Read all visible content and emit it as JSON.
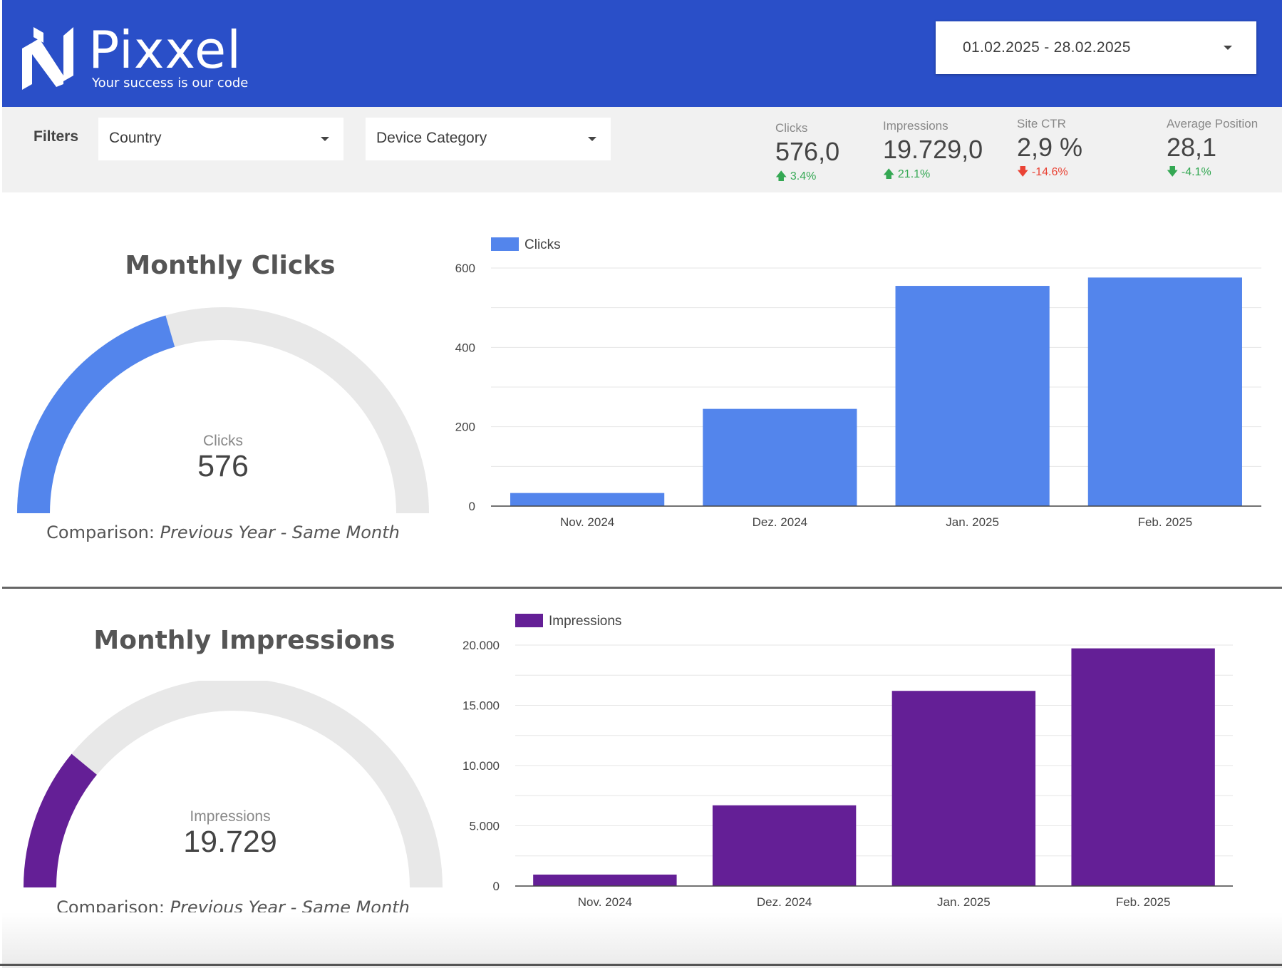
{
  "brand": {
    "name": "Pixxel",
    "tagline": "Your success is our code"
  },
  "date_range": {
    "value": "01.02.2025 - 28.02.2025"
  },
  "filters": {
    "label": "Filters",
    "country": "Country",
    "device": "Device Category"
  },
  "kpis": [
    {
      "label": "Clicks",
      "value": "576,0",
      "delta": "3.4%",
      "direction": "up",
      "status": "good"
    },
    {
      "label": "Impressions",
      "value": "19.729,0",
      "delta": "21.1%",
      "direction": "up",
      "status": "good"
    },
    {
      "label": "Site CTR",
      "value": "2,9 %",
      "delta": "-14.6%",
      "direction": "down",
      "status": "bad"
    },
    {
      "label": "Average Position",
      "value": "28,1",
      "delta": "-4.1%",
      "direction": "down",
      "status": "good"
    }
  ],
  "sections": [
    {
      "title": "Monthly Clicks",
      "gauge": {
        "label": "Clicks",
        "value": "576",
        "fill_fraction": 0.41,
        "color": "#5385ec",
        "track": "#e8e8e8"
      },
      "comparison_prefix": "Comparison: ",
      "comparison_value": "Previous Year - Same Month"
    },
    {
      "title": "Monthly Impressions",
      "gauge": {
        "label": "Impressions",
        "value": "19.729",
        "fill_fraction": 0.22,
        "color": "#641f96",
        "track": "#e8e8e8"
      },
      "comparison_prefix": "Comparison: ",
      "comparison_value": "Previous Year - Same Month"
    }
  ],
  "chart_data": [
    {
      "type": "bar",
      "categories": [
        "Nov. 2024",
        "Dez. 2024",
        "Jan. 2025",
        "Feb. 2025"
      ],
      "series": [
        {
          "name": "Clicks",
          "values": [
            33,
            245,
            555,
            576
          ],
          "color": "#5385ec"
        }
      ],
      "ylim": [
        0,
        600
      ],
      "yticks": [
        0,
        200,
        400,
        600
      ],
      "ytick_labels": [
        "0",
        "200",
        "400",
        "600"
      ],
      "grid": true,
      "legend": "top-left"
    },
    {
      "type": "bar",
      "categories": [
        "Nov. 2024",
        "Dez. 2024",
        "Jan. 2025",
        "Feb. 2025"
      ],
      "series": [
        {
          "name": "Impressions",
          "values": [
            950,
            6700,
            16200,
            19729
          ],
          "color": "#641f96"
        }
      ],
      "ylim": [
        0,
        20000
      ],
      "yticks": [
        0,
        5000,
        10000,
        15000,
        20000
      ],
      "ytick_labels": [
        "0",
        "5.000",
        "10.000",
        "15.000",
        "20.000"
      ],
      "grid": true,
      "legend": "top-left"
    }
  ]
}
